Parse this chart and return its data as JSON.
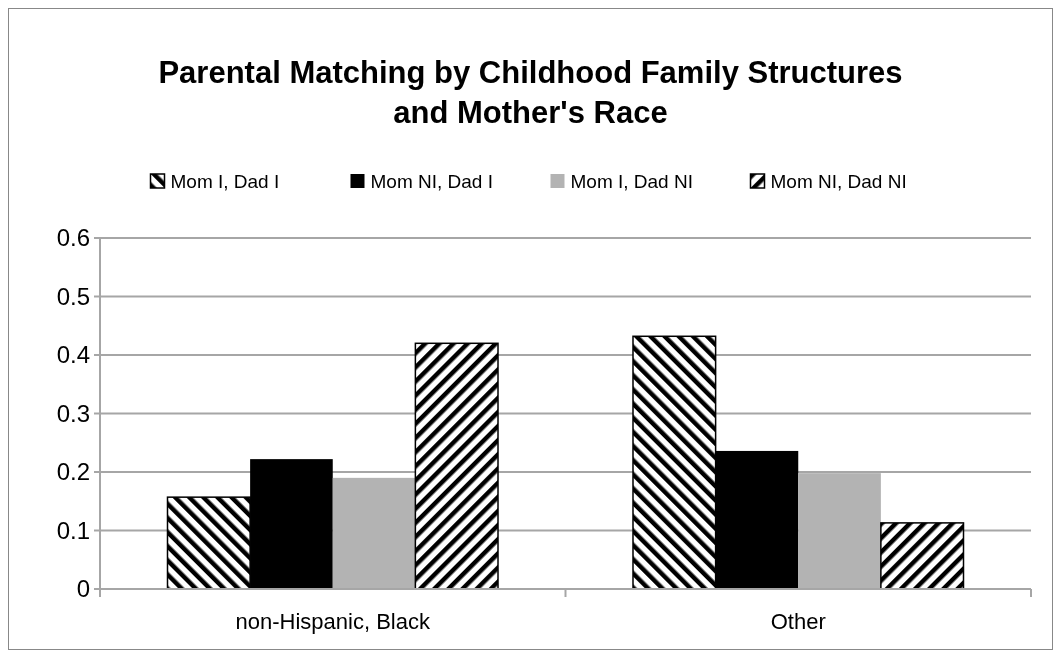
{
  "chart_data": {
    "type": "bar",
    "title": "Parental Matching by Childhood Family Structures and Mother's Race",
    "categories": [
      "non-Hispanic, Black",
      "Other"
    ],
    "series": [
      {
        "name": "Mom I, Dad I",
        "color": "#000000",
        "values": [
          0.157,
          0.432
        ]
      },
      {
        "name": "Mom NI, Dad I",
        "color": "#000000",
        "values": [
          0.222,
          0.236
        ]
      },
      {
        "name": "Mom I, Dad NI",
        "color": "#b3b3b3",
        "values": [
          0.19,
          0.198
        ]
      },
      {
        "name": "Mom NI, Dad NI",
        "color": "#000000",
        "values": [
          0.42,
          0.113
        ]
      }
    ],
    "ylim": [
      0,
      0.6
    ],
    "yticks": [
      0,
      0.1,
      0.2,
      0.3,
      0.4,
      0.5,
      0.6
    ],
    "grid": "y",
    "legend": "top"
  }
}
